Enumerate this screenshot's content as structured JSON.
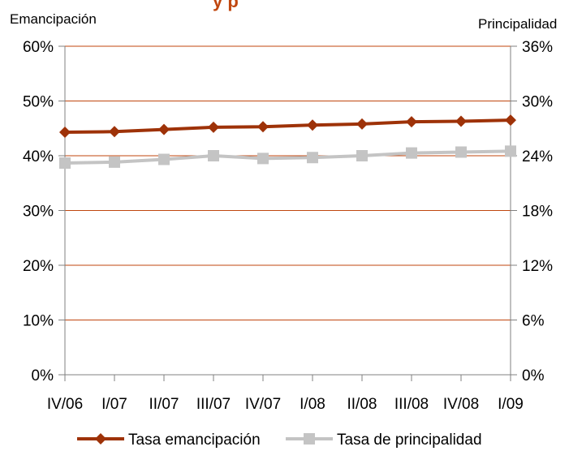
{
  "chart_data": {
    "type": "line",
    "title": "y p",
    "categories": [
      "IV/06",
      "I/07",
      "II/07",
      "III/07",
      "IV/07",
      "I/08",
      "II/08",
      "III/08",
      "IV/08",
      "I/09"
    ],
    "y_left": {
      "label": "Emancipación",
      "range": [
        0,
        60
      ],
      "ticks": [
        0,
        10,
        20,
        30,
        40,
        50,
        60
      ],
      "tick_labels": [
        "0%",
        "10%",
        "20%",
        "30%",
        "40%",
        "50%",
        "60%"
      ]
    },
    "y_right": {
      "label": "Principalidad",
      "range": [
        0,
        36
      ],
      "ticks": [
        0,
        6,
        12,
        18,
        24,
        30,
        36
      ],
      "tick_labels": [
        "0%",
        "6%",
        "12%",
        "18%",
        "24%",
        "30%",
        "36%"
      ]
    },
    "grid": true,
    "legend_position": "bottom",
    "series": [
      {
        "name": "Tasa emancipación",
        "axis": "left",
        "color": "#9E3208",
        "marker": "diamond",
        "values": [
          44.3,
          44.4,
          44.8,
          45.2,
          45.3,
          45.6,
          45.8,
          46.2,
          46.3,
          46.5
        ]
      },
      {
        "name": "Tasa de principalidad",
        "axis": "right",
        "color": "#C4C4C4",
        "marker": "square",
        "values": [
          23.2,
          23.3,
          23.6,
          24.0,
          23.7,
          23.8,
          24.0,
          24.3,
          24.4,
          24.5
        ]
      }
    ]
  },
  "colors": {
    "gridline": "#C0460E",
    "axis": "#808080"
  }
}
